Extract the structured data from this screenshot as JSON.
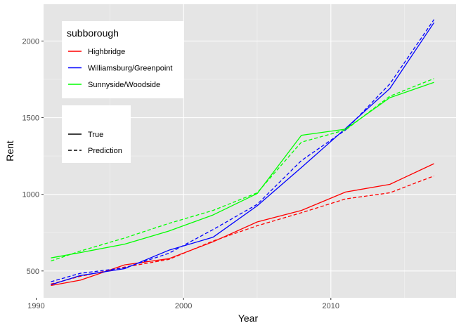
{
  "chart_data": {
    "type": "line",
    "xlabel": "Year",
    "ylabel": "Rent",
    "xlim": [
      1990.5,
      2018.5
    ],
    "ylim": [
      325,
      2240
    ],
    "x_ticks": [
      1990,
      2000,
      2010
    ],
    "y_ticks": [
      500,
      1000,
      1500,
      2000
    ],
    "x_tick_labels": [
      "1990",
      "2000",
      "2010"
    ],
    "y_tick_labels": [
      "500",
      "1000",
      "1500",
      "2000"
    ],
    "grid": true,
    "panel_background": "#e5e5e5",
    "legend_color": {
      "title": "subborough",
      "placement": "top-left",
      "entries": [
        {
          "label": "Highbridge",
          "color": "#ff0000"
        },
        {
          "label": "Williamsburg/Greenpoint",
          "color": "#0000ff"
        },
        {
          "label": "Sunnyside/Woodside",
          "color": "#00ff00"
        }
      ]
    },
    "legend_linetype": {
      "title": "",
      "placement": "left",
      "entries": [
        {
          "label": "True",
          "linetype": "solid"
        },
        {
          "label": "Prediction",
          "linetype": "dashed"
        }
      ]
    },
    "series": [
      {
        "name": "Highbridge",
        "linetype": "True",
        "color": "#ff0000",
        "x": [
          1991,
          1993,
          1996,
          1999,
          2002,
          2005,
          2008,
          2011,
          2014,
          2017
        ],
        "y": [
          405,
          440,
          540,
          580,
          690,
          820,
          895,
          1015,
          1065,
          1200
        ]
      },
      {
        "name": "Highbridge",
        "linetype": "Prediction",
        "color": "#ff0000",
        "x": [
          1991,
          1993,
          1996,
          1999,
          2002,
          2005,
          2008,
          2011,
          2014,
          2017
        ],
        "y": [
          415,
          465,
          525,
          575,
          695,
          795,
          880,
          970,
          1010,
          1120
        ]
      },
      {
        "name": "Williamsburg/Greenpoint",
        "linetype": "True",
        "color": "#0000ff",
        "x": [
          1991,
          1993,
          1996,
          1999,
          2002,
          2005,
          2008,
          2011,
          2014,
          2017
        ],
        "y": [
          410,
          470,
          515,
          635,
          720,
          925,
          1175,
          1430,
          1690,
          2120
        ]
      },
      {
        "name": "Williamsburg/Greenpoint",
        "linetype": "Prediction",
        "color": "#0000ff",
        "x": [
          1991,
          1993,
          1996,
          1999,
          2002,
          2005,
          2008,
          2011,
          2014,
          2017
        ],
        "y": [
          430,
          485,
          520,
          615,
          770,
          935,
          1220,
          1420,
          1720,
          2140
        ]
      },
      {
        "name": "Sunnyside/Woodside",
        "linetype": "True",
        "color": "#00ff00",
        "x": [
          1991,
          1993,
          1996,
          1999,
          2002,
          2005,
          2008,
          2011,
          2014,
          2017
        ],
        "y": [
          585,
          620,
          675,
          760,
          865,
          1005,
          1385,
          1425,
          1630,
          1730
        ]
      },
      {
        "name": "Sunnyside/Woodside",
        "linetype": "Prediction",
        "color": "#00ff00",
        "x": [
          1991,
          1993,
          1996,
          1999,
          2002,
          2005,
          2008,
          2011,
          2014,
          2017
        ],
        "y": [
          565,
          630,
          715,
          810,
          895,
          1010,
          1340,
          1420,
          1640,
          1755
        ]
      }
    ]
  }
}
